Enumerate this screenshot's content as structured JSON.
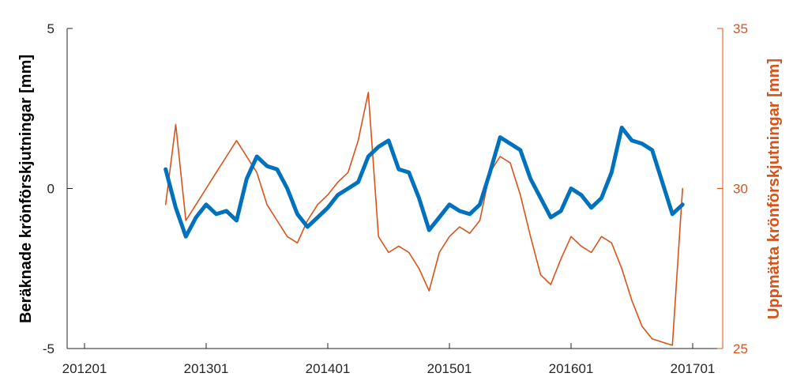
{
  "chart_data": {
    "type": "line",
    "x_ticks": [
      "201201",
      "201301",
      "201401",
      "201501",
      "201601",
      "201701"
    ],
    "x_range": [
      "2012-01",
      "2017-01"
    ],
    "ylabel_left": "Beräknade krönförskjutningar [mm]",
    "ylabel_right": "Uppmätta krönförskjutningar [mm]",
    "ylim_left": [
      -5,
      5
    ],
    "yticks_left": [
      "-5",
      "0",
      "5"
    ],
    "ylim_right": [
      25,
      35
    ],
    "yticks_right": [
      "25",
      "30",
      "35"
    ],
    "grid": false,
    "colors": {
      "computed": "#0072BD",
      "measured": "#D95319",
      "axis": "#262626"
    },
    "series": [
      {
        "axis": "left",
        "color": "#0072BD",
        "x": [
          "2012-09",
          "2012-10",
          "2012-11",
          "2012-12",
          "2013-01",
          "2013-02",
          "2013-03",
          "2013-04",
          "2013-05",
          "2013-06",
          "2013-07",
          "2013-08",
          "2013-09",
          "2013-10",
          "2013-11",
          "2013-12",
          "2014-01",
          "2014-02",
          "2014-03",
          "2014-04",
          "2014-05",
          "2014-06",
          "2014-07",
          "2014-08",
          "2014-09",
          "2014-10",
          "2014-11",
          "2014-12",
          "2015-01",
          "2015-02",
          "2015-03",
          "2015-04",
          "2015-05",
          "2015-06",
          "2015-07",
          "2015-08",
          "2015-09",
          "2015-10",
          "2015-11",
          "2015-12",
          "2016-01",
          "2016-02",
          "2016-03",
          "2016-04",
          "2016-05",
          "2016-06",
          "2016-07",
          "2016-08",
          "2016-09",
          "2016-10",
          "2016-11",
          "2016-12"
        ],
        "y": [
          0.6,
          -0.6,
          -1.5,
          -0.9,
          -0.5,
          -0.8,
          -0.7,
          -1.0,
          0.3,
          1.0,
          0.7,
          0.6,
          0.0,
          -0.8,
          -1.2,
          -0.9,
          -0.6,
          -0.2,
          0.0,
          0.2,
          1.0,
          1.3,
          1.5,
          0.6,
          0.5,
          -0.3,
          -1.3,
          -0.9,
          -0.5,
          -0.7,
          -0.8,
          -0.5,
          0.5,
          1.6,
          1.4,
          1.2,
          0.3,
          -0.3,
          -0.9,
          -0.7,
          0.0,
          -0.2,
          -0.6,
          -0.3,
          0.5,
          1.9,
          1.5,
          1.4,
          1.2,
          0.2,
          -0.8,
          -0.5
        ]
      },
      {
        "axis": "right",
        "color": "#D95319",
        "x": [
          "2012-09",
          "2012-10",
          "2012-11",
          "2012-12",
          "2013-01",
          "2013-02",
          "2013-03",
          "2013-04",
          "2013-05",
          "2013-06",
          "2013-07",
          "2013-08",
          "2013-09",
          "2013-10",
          "2013-11",
          "2013-12",
          "2014-01",
          "2014-02",
          "2014-03",
          "2014-04",
          "2014-05",
          "2014-06",
          "2014-07",
          "2014-08",
          "2014-09",
          "2014-10",
          "2014-11",
          "2014-12",
          "2015-01",
          "2015-02",
          "2015-03",
          "2015-04",
          "2015-05",
          "2015-06",
          "2015-07",
          "2015-08",
          "2015-09",
          "2015-10",
          "2015-11",
          "2015-12",
          "2016-01",
          "2016-02",
          "2016-03",
          "2016-04",
          "2016-05",
          "2016-06",
          "2016-07",
          "2016-08",
          "2016-09",
          "2016-10",
          "2016-11",
          "2016-12"
        ],
        "y": [
          29.5,
          32.0,
          29.0,
          29.5,
          30.0,
          30.5,
          31.0,
          31.5,
          31.0,
          30.5,
          29.5,
          29.0,
          28.5,
          28.3,
          29.0,
          29.5,
          29.8,
          30.2,
          30.5,
          31.5,
          33.0,
          28.5,
          28.0,
          28.2,
          28.0,
          27.5,
          26.8,
          28.0,
          28.5,
          28.8,
          28.6,
          29.0,
          30.5,
          31.0,
          30.8,
          29.8,
          28.5,
          27.3,
          27.0,
          27.8,
          28.5,
          28.2,
          28.0,
          28.5,
          28.3,
          27.5,
          26.5,
          25.7,
          25.3,
          25.2,
          25.1,
          30.0
        ]
      }
    ]
  }
}
